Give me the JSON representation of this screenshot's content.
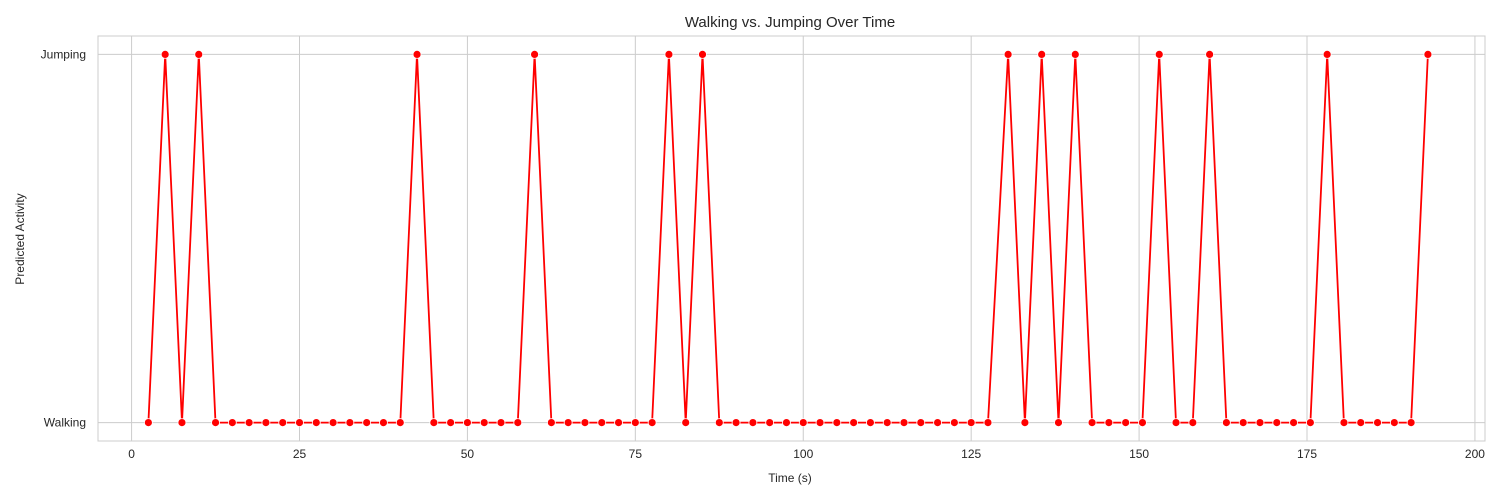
{
  "chart_data": {
    "type": "line",
    "title": "Walking vs. Jumping Over Time",
    "xlabel": "Time (s)",
    "ylabel": "Predicted Activity",
    "xlim": [
      -5.0,
      201.5
    ],
    "ylim": [
      -0.05,
      1.05
    ],
    "x_ticks": [
      0,
      25,
      50,
      75,
      100,
      125,
      150,
      175,
      200
    ],
    "y_ticks": [
      {
        "value": 0,
        "label": "Walking"
      },
      {
        "value": 1,
        "label": "Jumping"
      }
    ],
    "grid": true,
    "legend": "none",
    "series": [
      {
        "color": "#ff0000",
        "marker": "circle",
        "x": [
          2.5,
          5.0,
          7.5,
          10.0,
          12.5,
          15.0,
          17.5,
          20.0,
          22.5,
          25.0,
          27.5,
          30.0,
          32.5,
          35.0,
          37.5,
          40.0,
          42.5,
          45.0,
          47.5,
          50.0,
          52.5,
          55.0,
          57.5,
          60.0,
          62.5,
          65.0,
          67.5,
          70.0,
          72.5,
          75.0,
          77.5,
          80.0,
          82.5,
          85.0,
          87.5,
          90.0,
          92.5,
          95.0,
          97.5,
          100.0,
          102.5,
          105.0,
          107.5,
          110.0,
          112.5,
          115.0,
          117.5,
          120.0,
          122.5,
          125.0,
          127.5,
          130.5,
          133.0,
          135.5,
          138.0,
          140.5,
          143.0,
          145.5,
          148.0,
          150.5,
          153.0,
          155.5,
          158.0,
          160.5,
          163.0,
          165.5,
          168.0,
          170.5,
          173.0,
          175.5,
          178.0,
          180.5,
          183.0,
          185.5,
          188.0,
          190.5,
          193.0
        ],
        "values": [
          0,
          1,
          0,
          1,
          0,
          0,
          0,
          0,
          0,
          0,
          0,
          0,
          0,
          0,
          0,
          0,
          1,
          0,
          0,
          0,
          0,
          0,
          0,
          1,
          0,
          0,
          0,
          0,
          0,
          0,
          0,
          1,
          0,
          1,
          0,
          0,
          0,
          0,
          0,
          0,
          0,
          0,
          0,
          0,
          0,
          0,
          0,
          0,
          0,
          0,
          0,
          1,
          0,
          1,
          0,
          1,
          0,
          0,
          0,
          0,
          1,
          0,
          0,
          1,
          0,
          0,
          0,
          0,
          0,
          0,
          1,
          0,
          0,
          0,
          0,
          0,
          1
        ]
      }
    ]
  }
}
